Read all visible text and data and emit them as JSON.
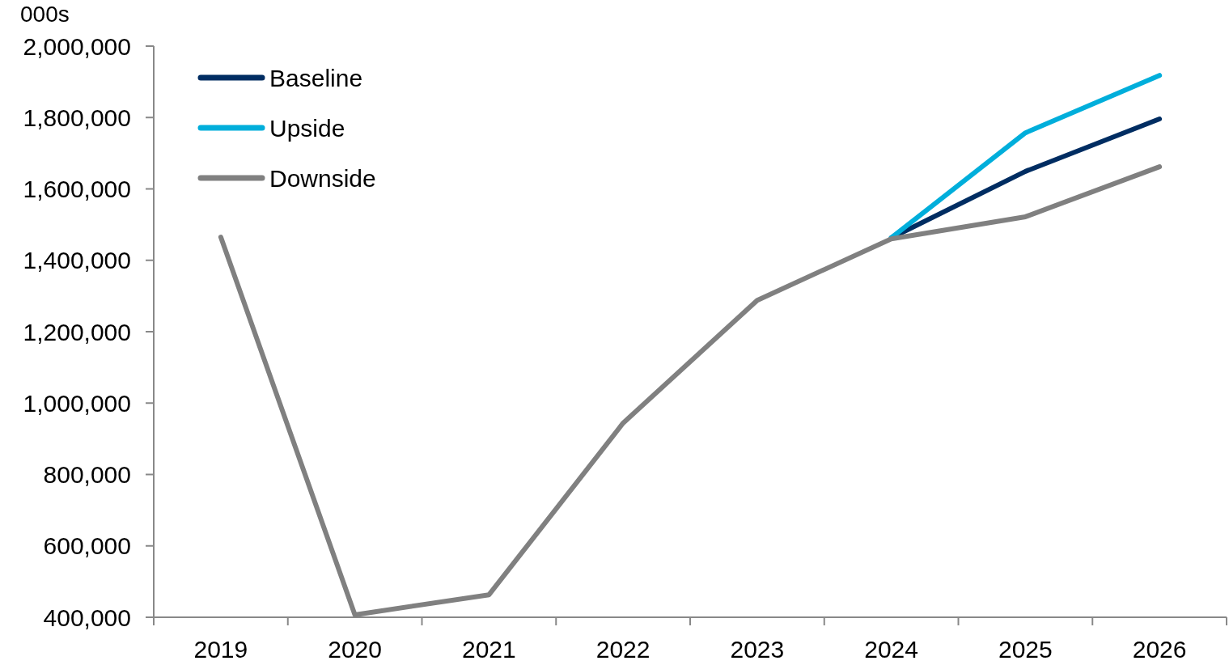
{
  "chart_data": {
    "type": "line",
    "ylabel": "000s",
    "categories": [
      "2019",
      "2020",
      "2021",
      "2022",
      "2023",
      "2024",
      "2025",
      "2026"
    ],
    "ylim": [
      400000,
      2000000
    ],
    "yticks": [
      {
        "value": 400000,
        "label": "400,000"
      },
      {
        "value": 600000,
        "label": "600,000"
      },
      {
        "value": 800000,
        "label": "800,000"
      },
      {
        "value": 1000000,
        "label": "1,000,000"
      },
      {
        "value": 1200000,
        "label": "1,200,000"
      },
      {
        "value": 1400000,
        "label": "1,400,000"
      },
      {
        "value": 1600000,
        "label": "1,600,000"
      },
      {
        "value": 1800000,
        "label": "1,800,000"
      },
      {
        "value": 2000000,
        "label": "2,000,000"
      }
    ],
    "grid": false,
    "legend": "top left",
    "marker": "none",
    "line_style": "solid",
    "series": [
      {
        "name": "Baseline",
        "color": "#002d62",
        "values": [
          null,
          null,
          null,
          null,
          null,
          1463000,
          1649000,
          1796000
        ]
      },
      {
        "name": "Upside",
        "color": "#00aedb",
        "values": [
          null,
          null,
          null,
          null,
          null,
          1463000,
          1757000,
          1918000
        ]
      },
      {
        "name": "Downside",
        "color": "#808080",
        "values": [
          1465000,
          407000,
          463000,
          944000,
          1288000,
          1460000,
          1522000,
          1662000
        ]
      }
    ]
  }
}
